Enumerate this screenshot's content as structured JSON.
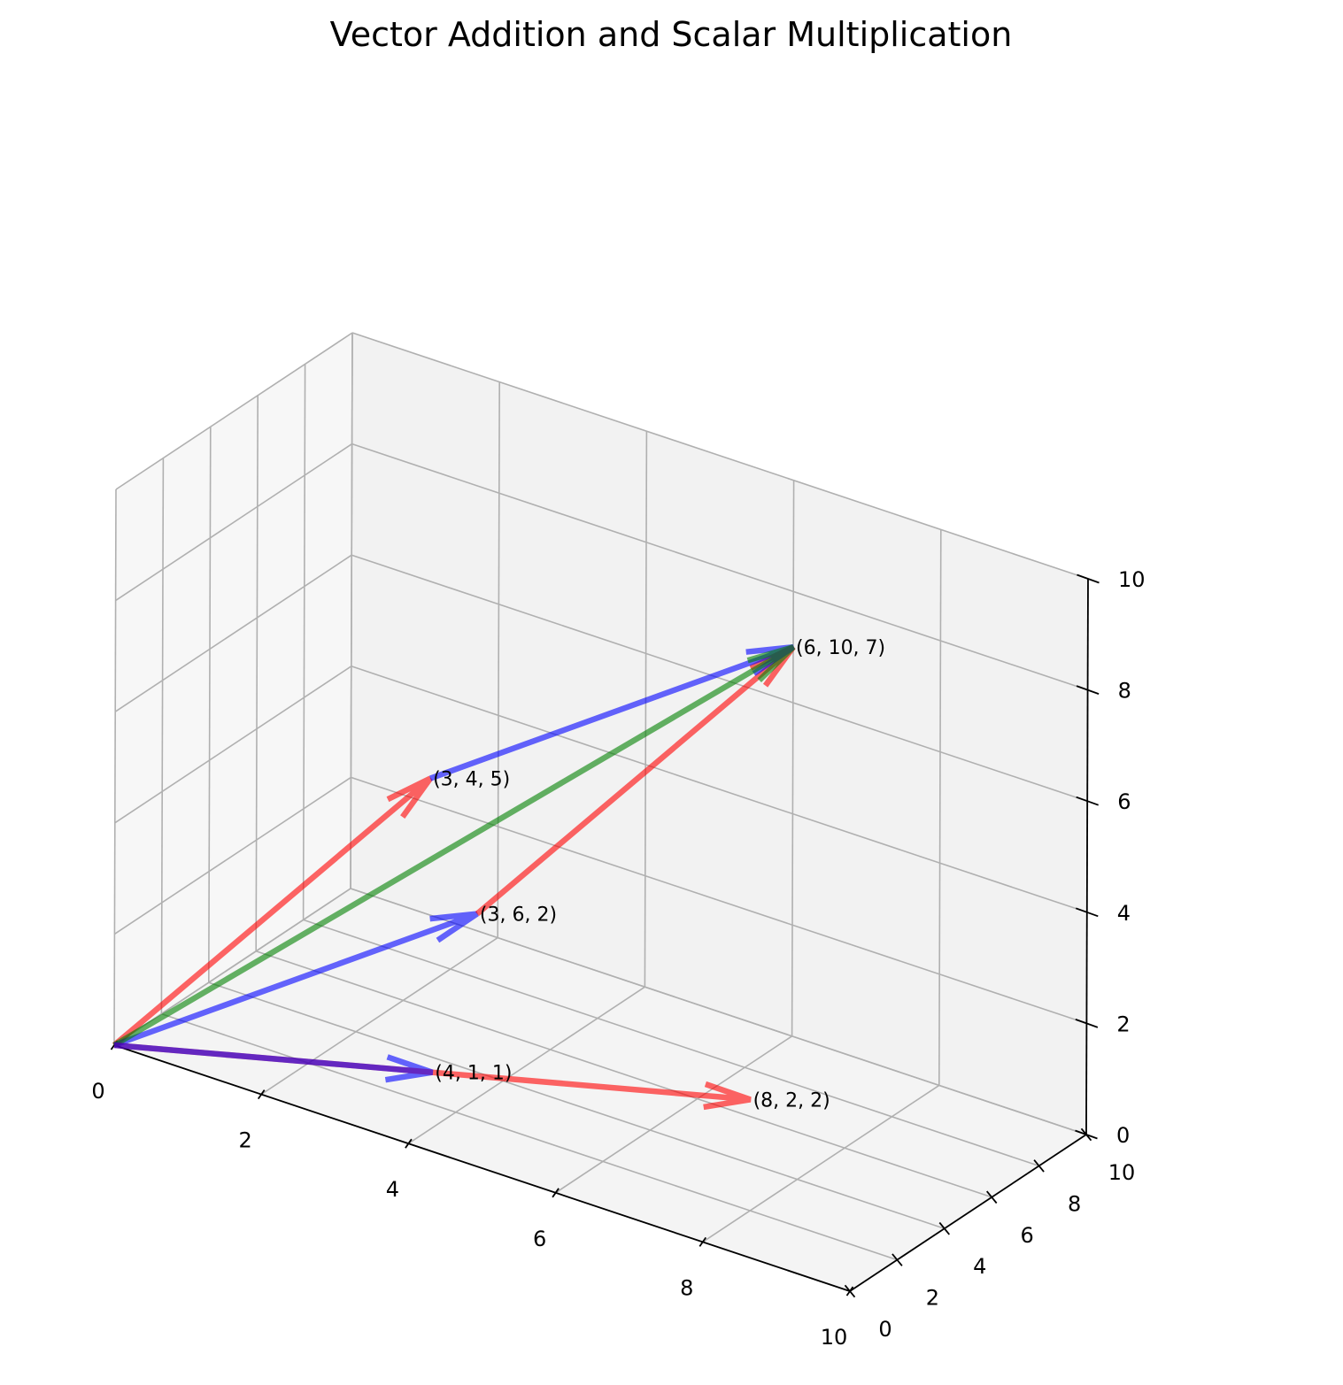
{
  "chart_data": {
    "type": "vector-3d",
    "title": "Vector Addition and Scalar Multiplication",
    "xlabel": "",
    "ylabel": "",
    "zlabel": "",
    "xlim": [
      0,
      10
    ],
    "ylim": [
      0,
      10
    ],
    "zlim": [
      0,
      10
    ],
    "xticks": [
      "0",
      "2",
      "4",
      "6",
      "8",
      "10"
    ],
    "yticks": [
      "0",
      "2",
      "4",
      "6",
      "8",
      "10"
    ],
    "zticks": [
      "0",
      "2",
      "4",
      "6",
      "8",
      "10"
    ],
    "grid": true,
    "vectors": [
      {
        "id": "v1",
        "origin": [
          0,
          0,
          0
        ],
        "end": [
          3,
          4,
          5
        ],
        "color": "#ff0000"
      },
      {
        "id": "v2",
        "origin": [
          0,
          0,
          0
        ],
        "end": [
          3,
          6,
          2
        ],
        "color": "#0000ff"
      },
      {
        "id": "v3",
        "origin": [
          3,
          6,
          2
        ],
        "end": [
          6,
          10,
          7
        ],
        "color": "#ff0000"
      },
      {
        "id": "v4",
        "origin": [
          3,
          4,
          5
        ],
        "end": [
          6,
          10,
          7
        ],
        "color": "#0000ff"
      },
      {
        "id": "v5",
        "origin": [
          0,
          0,
          0
        ],
        "end": [
          6,
          10,
          7
        ],
        "color": "#008000"
      },
      {
        "id": "v6",
        "origin": [
          0,
          0,
          0
        ],
        "end": [
          8,
          2,
          2
        ],
        "color": "#ff0000"
      },
      {
        "id": "v7",
        "origin": [
          0,
          0,
          0
        ],
        "end": [
          4,
          1,
          1
        ],
        "color": "#0000ff"
      }
    ],
    "annotations": [
      {
        "text": "(3, 4, 5)",
        "at": [
          3,
          4,
          5
        ]
      },
      {
        "text": "(3, 6, 2)",
        "at": [
          3,
          6,
          2
        ]
      },
      {
        "text": "(6, 10, 7)",
        "at": [
          6,
          10,
          7
        ]
      },
      {
        "text": "(4, 1, 1)",
        "at": [
          4,
          1,
          1
        ]
      },
      {
        "text": "(8, 2, 2)",
        "at": [
          8,
          2,
          2
        ]
      }
    ]
  }
}
